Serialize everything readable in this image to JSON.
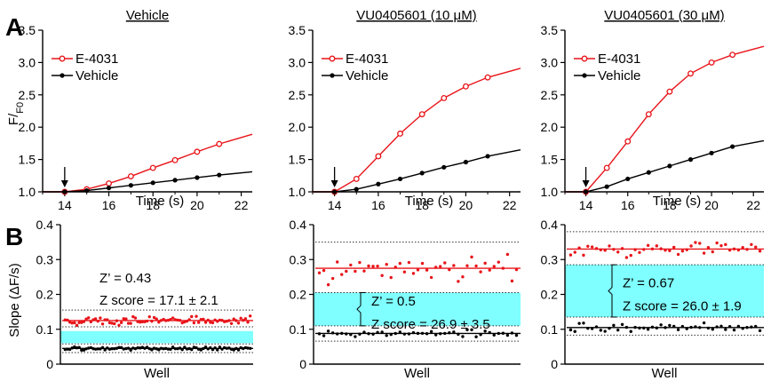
{
  "panel_letters": [
    "A",
    "B"
  ],
  "chart_data": [
    {
      "panel": "A",
      "type": "line",
      "title": "Vehicle",
      "xlabel": "Time (s)",
      "ylabel": "F/F0",
      "xlim": [
        13,
        22.5
      ],
      "ylim": [
        1.0,
        3.5
      ],
      "xticks": [
        14,
        16,
        18,
        20,
        22
      ],
      "yticks": [
        "1.0",
        "1.5",
        "2.0",
        "2.5",
        "3.0",
        "3.5"
      ],
      "arrow_at": 14,
      "legend": "top-left",
      "series": [
        {
          "name": "E-4031",
          "color": "#e8141a",
          "marker": "open-circle",
          "x": [
            13,
            14,
            15,
            16,
            17,
            18,
            19,
            20,
            21,
            22.5
          ],
          "y": [
            1.0,
            1.0,
            1.04,
            1.13,
            1.24,
            1.37,
            1.49,
            1.62,
            1.74,
            1.89
          ]
        },
        {
          "name": "Vehicle",
          "color": "#000000",
          "marker": "filled-circle",
          "x": [
            13,
            14,
            15,
            16,
            17,
            18,
            19,
            20,
            21,
            22.5
          ],
          "y": [
            1.0,
            1.0,
            1.02,
            1.06,
            1.1,
            1.14,
            1.18,
            1.22,
            1.26,
            1.31
          ]
        }
      ]
    },
    {
      "panel": "A",
      "type": "line",
      "title": "VU0405601 (10 μM)",
      "xlabel": "Time (s)",
      "ylabel": "",
      "xlim": [
        13,
        22.5
      ],
      "ylim": [
        1.0,
        3.5
      ],
      "xticks": [
        14,
        16,
        18,
        20,
        22
      ],
      "yticks": [
        "1.0",
        "1.5",
        "2.0",
        "2.5",
        "3.0",
        "3.5"
      ],
      "arrow_at": 14,
      "legend": "top-left",
      "series": [
        {
          "name": "E-4031",
          "color": "#e8141a",
          "marker": "open-circle",
          "x": [
            13,
            14,
            15,
            16,
            17,
            18,
            19,
            20,
            21,
            22.5
          ],
          "y": [
            1.0,
            1.0,
            1.2,
            1.55,
            1.9,
            2.2,
            2.45,
            2.63,
            2.77,
            2.91
          ]
        },
        {
          "name": "Vehicle",
          "color": "#000000",
          "marker": "filled-circle",
          "x": [
            13,
            14,
            15,
            16,
            17,
            18,
            19,
            20,
            21,
            22.5
          ],
          "y": [
            1.0,
            1.0,
            1.04,
            1.12,
            1.2,
            1.29,
            1.38,
            1.46,
            1.55,
            1.65
          ]
        }
      ]
    },
    {
      "panel": "A",
      "type": "line",
      "title": "VU0405601 (30 μM)",
      "xlabel": "Time (s)",
      "ylabel": "",
      "xlim": [
        13,
        22.5
      ],
      "ylim": [
        1.0,
        3.5
      ],
      "xticks": [
        14,
        16,
        18,
        20,
        22
      ],
      "yticks": [
        "1.0",
        "1.5",
        "2.0",
        "2.5",
        "3.0",
        "3.5"
      ],
      "arrow_at": 14,
      "legend": "top-left",
      "series": [
        {
          "name": "E-4031",
          "color": "#e8141a",
          "marker": "open-circle",
          "x": [
            13,
            14,
            15,
            16,
            17,
            18,
            19,
            20,
            21,
            22.5
          ],
          "y": [
            1.0,
            1.0,
            1.37,
            1.78,
            2.2,
            2.55,
            2.83,
            3.0,
            3.12,
            3.25
          ]
        },
        {
          "name": "Vehicle",
          "color": "#000000",
          "marker": "filled-circle",
          "x": [
            13,
            14,
            15,
            16,
            17,
            18,
            19,
            20,
            21,
            22.5
          ],
          "y": [
            1.0,
            1.0,
            1.08,
            1.2,
            1.3,
            1.4,
            1.5,
            1.6,
            1.7,
            1.79
          ]
        }
      ]
    },
    {
      "panel": "B",
      "type": "scatter",
      "title": "",
      "xlabel": "Well",
      "ylabel": "Slope (ΔF/s)",
      "ylim": [
        0,
        0.4
      ],
      "yticks": [
        "0",
        "0.1",
        "0.2",
        "0.3",
        "0.4"
      ],
      "band": [
        0.06,
        0.095
      ],
      "annotations": [
        "Z’ = 0.43",
        "Z score = 17.1 ± 2.1"
      ],
      "series": [
        {
          "name": "",
          "color": "#e8141a",
          "mean": 0.125,
          "sd_lines": [
            0.107,
            0.155
          ],
          "spread": 0.01,
          "n": 80
        },
        {
          "name": "",
          "color": "#000000",
          "mean": 0.045,
          "sd_lines": [
            0.033,
            0.058
          ],
          "spread": 0.004,
          "n": 80
        }
      ]
    },
    {
      "panel": "B",
      "type": "scatter",
      "title": "",
      "xlabel": "Well",
      "ylabel": "",
      "ylim": [
        0,
        0.4
      ],
      "yticks": [
        "0",
        "0.1",
        "0.2",
        "0.3",
        "0.4"
      ],
      "band": [
        0.11,
        0.205
      ],
      "annotations": [
        "Z’ = 0.5",
        "Z score = 26.9 ± 3.5"
      ],
      "series": [
        {
          "name": "",
          "color": "#e8141a",
          "mean": 0.275,
          "sd_lines": [
            0.205,
            0.35
          ],
          "spread": 0.035,
          "n": 45
        },
        {
          "name": "",
          "color": "#000000",
          "mean": 0.088,
          "sd_lines": [
            0.066,
            0.11
          ],
          "spread": 0.008,
          "n": 45
        }
      ]
    },
    {
      "panel": "B",
      "type": "scatter",
      "title": "",
      "xlabel": "Well",
      "ylabel": "",
      "ylim": [
        0,
        0.4
      ],
      "yticks": [
        "0",
        "0.1",
        "0.2",
        "0.3",
        "0.4"
      ],
      "band": [
        0.135,
        0.285
      ],
      "annotations": [
        "Z’ = 0.67",
        "Z score = 26.0 ± 1.9"
      ],
      "series": [
        {
          "name": "",
          "color": "#e8141a",
          "mean": 0.33,
          "sd_lines": [
            0.285,
            0.38
          ],
          "spread": 0.018,
          "n": 45
        },
        {
          "name": "",
          "color": "#000000",
          "mean": 0.105,
          "sd_lines": [
            0.083,
            0.135
          ],
          "spread": 0.01,
          "n": 45
        }
      ]
    }
  ],
  "colors": {
    "red": "#e8141a",
    "black": "#000000",
    "band": "#7fffff"
  }
}
